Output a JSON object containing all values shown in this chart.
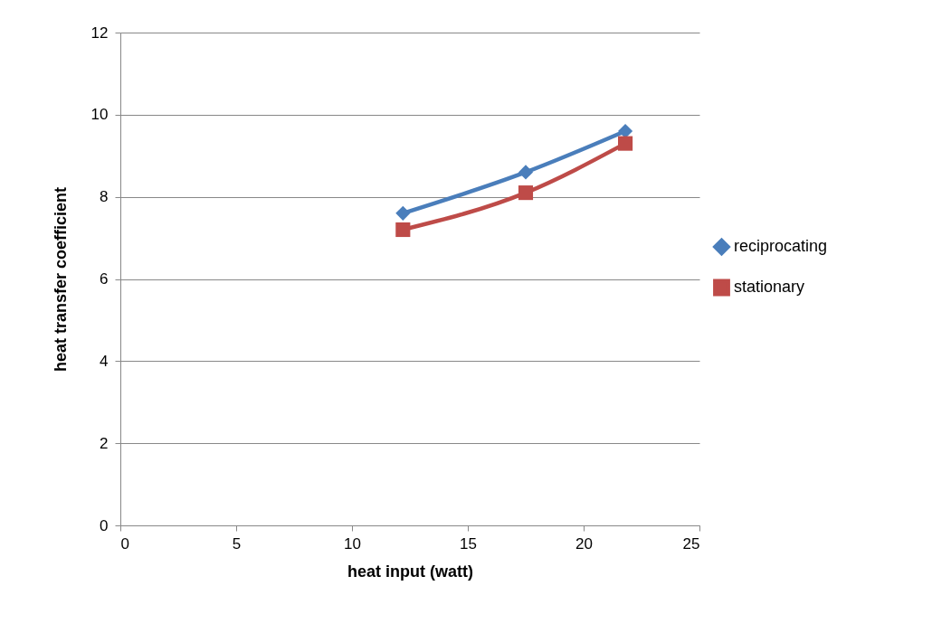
{
  "chart_data": {
    "type": "line",
    "xlabel": "heat input (watt)",
    "ylabel": "heat transfer coefficient",
    "xlim": [
      0,
      25
    ],
    "xticks": [
      0,
      5,
      10,
      15,
      20,
      25
    ],
    "ylim": [
      0,
      12
    ],
    "yticks": [
      0,
      2,
      4,
      6,
      8,
      10,
      12
    ],
    "grid": "y",
    "legend": "right",
    "line_style": "solid",
    "series": [
      {
        "name": "reciprocating",
        "color": "#4a7ebb",
        "marker": "diamond",
        "x": [
          12.2,
          17.5,
          21.8
        ],
        "values": [
          7.6,
          8.6,
          9.6
        ]
      },
      {
        "name": "stationary",
        "color": "#be4b48",
        "marker": "square",
        "x": [
          12.2,
          17.5,
          21.8
        ],
        "values": [
          7.2,
          8.1,
          9.3
        ]
      }
    ]
  }
}
